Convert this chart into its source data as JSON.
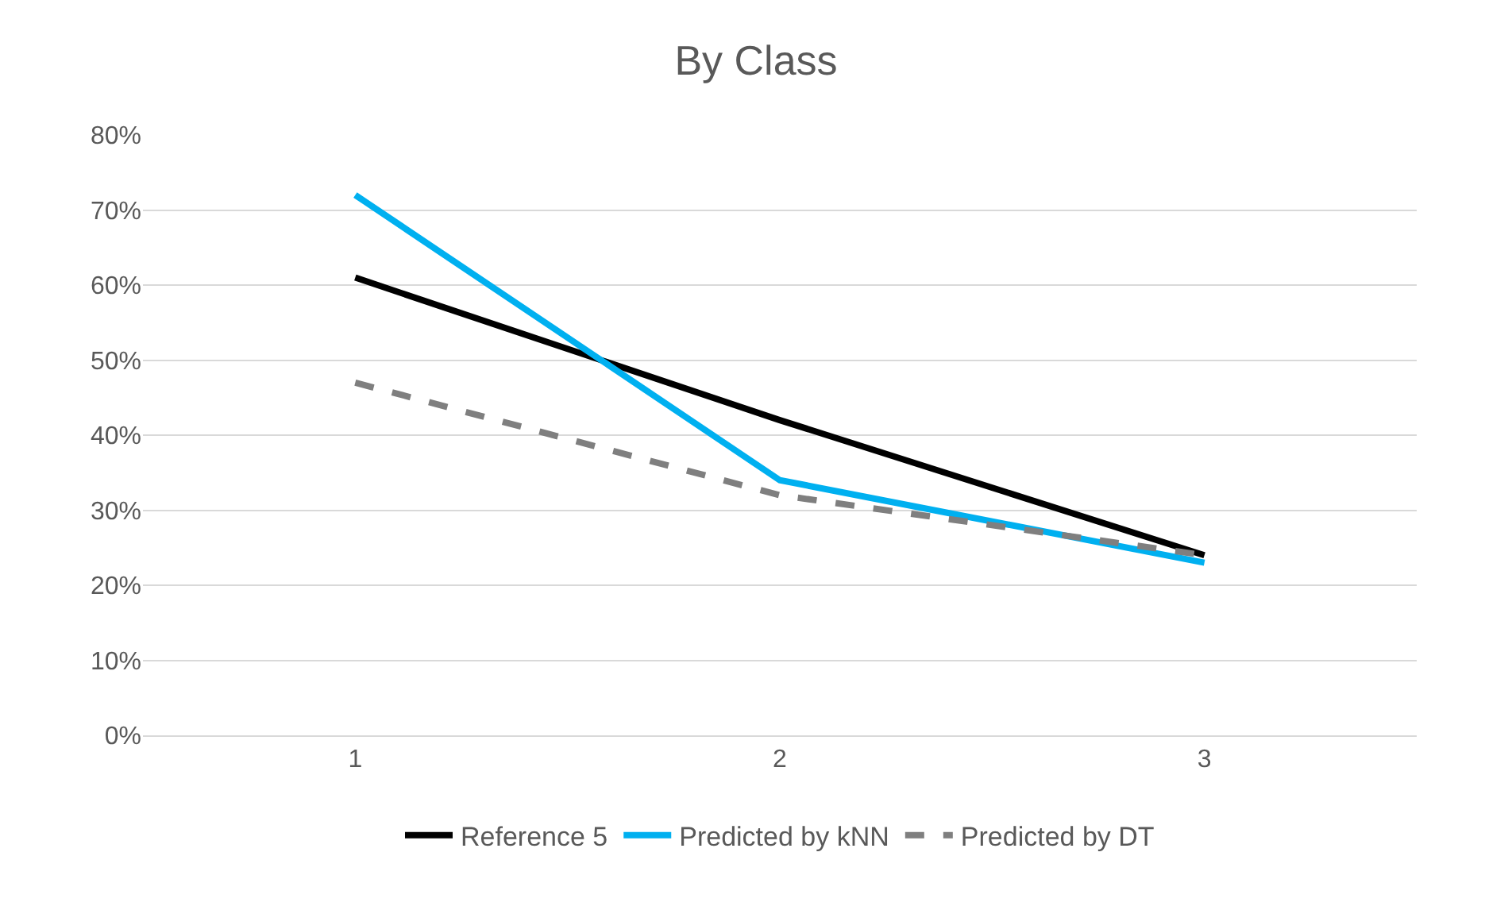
{
  "chart_data": {
    "type": "line",
    "title": "By Class",
    "categories": [
      "1",
      "2",
      "3"
    ],
    "series": [
      {
        "name": "Reference 5",
        "color": "#000000",
        "values": [
          61,
          42,
          24
        ],
        "line_style": "solid"
      },
      {
        "name": "Predicted by kNN",
        "color": "#00b0f0",
        "values": [
          72,
          34,
          23
        ],
        "line_style": "solid"
      },
      {
        "name": "Predicted by DT",
        "color": "#7f7f7f",
        "values": [
          47,
          32,
          24
        ],
        "line_style": "dashed"
      }
    ],
    "ylim": [
      0,
      80
    ],
    "yticks": [
      {
        "value": 0,
        "label": "0%"
      },
      {
        "value": 10,
        "label": "10%"
      },
      {
        "value": 20,
        "label": "20%"
      },
      {
        "value": 30,
        "label": "30%"
      },
      {
        "value": 40,
        "label": "40%"
      },
      {
        "value": 50,
        "label": "50%"
      },
      {
        "value": 60,
        "label": "60%"
      },
      {
        "value": 70,
        "label": "70%"
      },
      {
        "value": 80,
        "label": "80%"
      }
    ],
    "grid": "y",
    "legend": "bottom",
    "marker": "none"
  }
}
